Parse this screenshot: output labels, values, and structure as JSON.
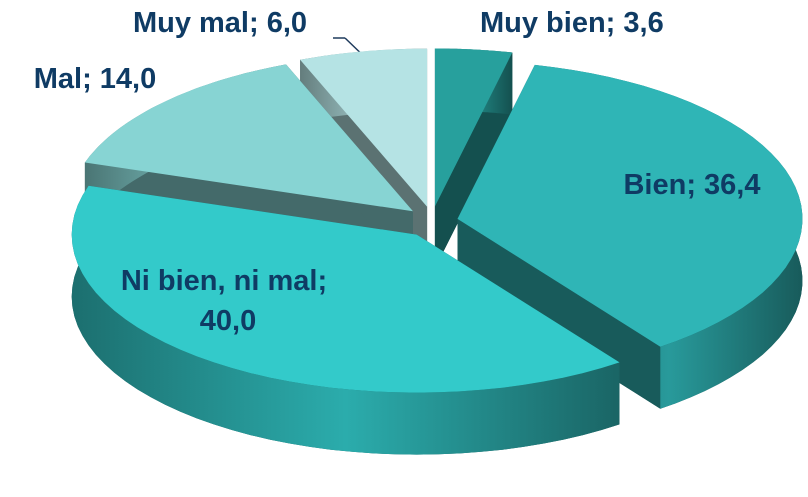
{
  "chart_data": {
    "type": "pie3d",
    "categories": [
      "Muy bien",
      "Bien",
      "Ni bien, ni mal",
      "Mal",
      "Muy mal"
    ],
    "values": [
      3.6,
      36.4,
      40.0,
      14.0,
      6.0
    ],
    "value_labels": [
      "3,6",
      "36,4",
      "40,0",
      "14,0",
      "6,0"
    ],
    "separator": "; ",
    "colors": [
      "#27a09d",
      "#2fb5b6",
      "#33caca",
      "#87d4d3",
      "#b5e3e4"
    ],
    "exploded": true
  }
}
